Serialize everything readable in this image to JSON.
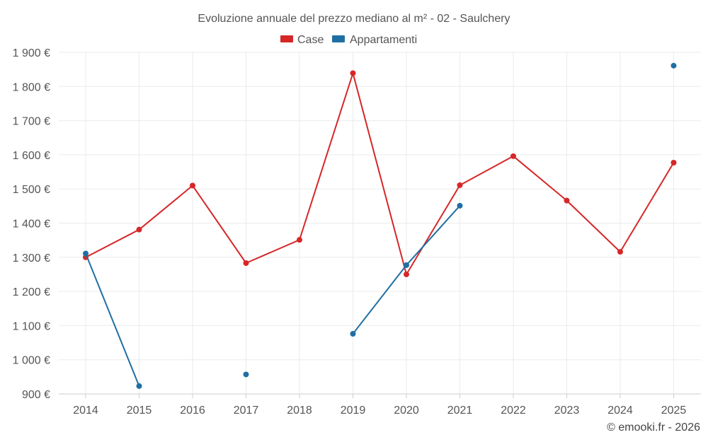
{
  "chart_data": {
    "type": "line",
    "title": "Evoluzione annuale del prezzo mediano al m² - 02 - Saulchery",
    "categories": [
      "2014",
      "2015",
      "2016",
      "2017",
      "2018",
      "2019",
      "2020",
      "2021",
      "2022",
      "2023",
      "2024",
      "2025"
    ],
    "ylim": [
      900,
      1900
    ],
    "yticks": [
      900,
      1000,
      1100,
      1200,
      1300,
      1400,
      1500,
      1600,
      1700,
      1800,
      1900
    ],
    "ytick_labels": [
      "900 €",
      "1 000 €",
      "1 100 €",
      "1 200 €",
      "1 300 €",
      "1 400 €",
      "1 500 €",
      "1 600 €",
      "1 700 €",
      "1 800 €",
      "1 900 €"
    ],
    "grid": true,
    "legend_position": "top-center",
    "series": [
      {
        "name": "Case",
        "color": "#d62728",
        "values": [
          1300,
          1381,
          1510,
          1283,
          1351,
          1839,
          1250,
          1511,
          1596,
          1466,
          1316,
          1577
        ]
      },
      {
        "name": "Appartamenti",
        "color": "#1f6fa3",
        "values": [
          1311,
          923,
          null,
          957,
          null,
          1076,
          1277,
          1451,
          null,
          null,
          null,
          1861
        ]
      }
    ],
    "credit": "© emooki.fr - 2026"
  }
}
